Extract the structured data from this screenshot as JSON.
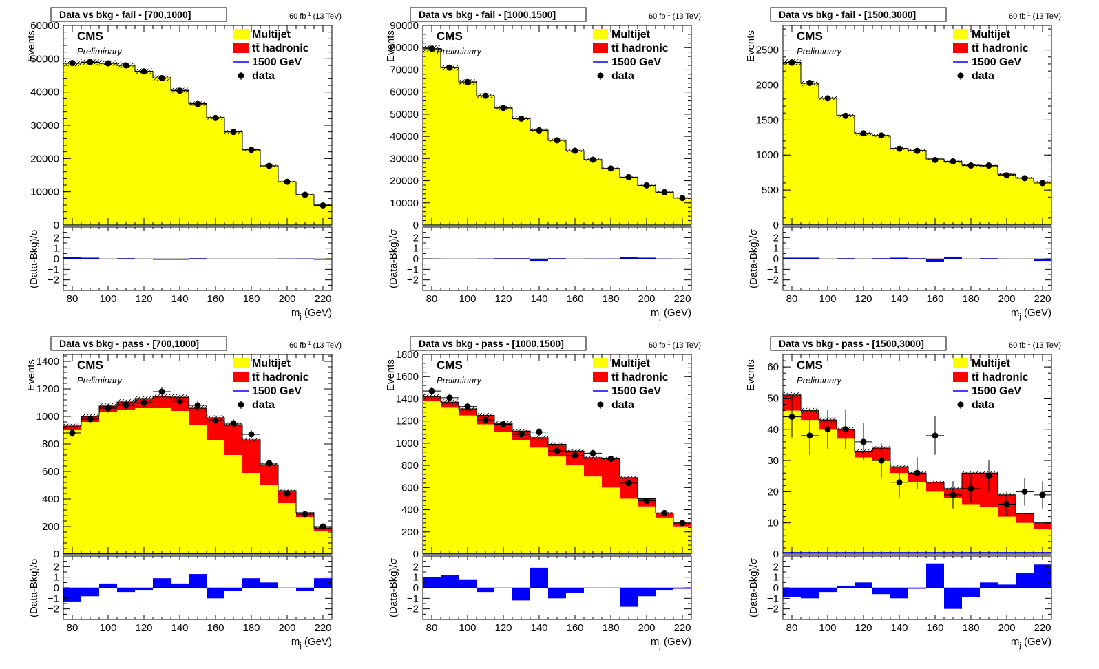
{
  "figure": {
    "lumi_text": "60 fb",
    "lumi_sup": "-1",
    "lumi_energy": " (13 TeV)",
    "cms_label": "CMS",
    "prelim_label": "Preliminary"
  },
  "chart_data": [
    {
      "type": "bar",
      "title": "Data vs bkg - fail - [700,1000]",
      "xlabel": "m",
      "xlabel_sub": "j",
      "xlabel_unit": " (GeV)",
      "ylabel": "Events",
      "ratio_ylabel": "(Data-Bkg)/σ",
      "x_edges": [
        75,
        85,
        95,
        105,
        115,
        125,
        135,
        145,
        155,
        165,
        175,
        185,
        195,
        205,
        215,
        225
      ],
      "xlim": [
        75,
        225
      ],
      "ylim": [
        0,
        60000
      ],
      "yticks": [
        10000,
        20000,
        30000,
        40000,
        50000,
        60000
      ],
      "yticklabels": [
        "10000",
        "20000",
        "30000",
        "40000",
        "50000",
        "60000"
      ],
      "xticks": [
        80,
        100,
        120,
        140,
        160,
        180,
        200,
        220
      ],
      "ratio_ylim": [
        -3,
        3
      ],
      "ratio_yticks": [
        -2,
        -1,
        0,
        1,
        2
      ],
      "legend": [
        {
          "name": "Multijet",
          "color": "#ffff00",
          "kind": "fill"
        },
        {
          "name": "tt̄ hadronic",
          "color": "#ff0000",
          "kind": "fill"
        },
        {
          "name": "1500 GeV",
          "color": "#0000ff",
          "kind": "line"
        },
        {
          "name": "data",
          "color": "#000000",
          "kind": "marker"
        }
      ],
      "series": [
        {
          "name": "Multijet",
          "color": "#ffff00",
          "values": [
            48600,
            48900,
            48700,
            48000,
            46200,
            44200,
            40500,
            36500,
            32300,
            28000,
            22600,
            17800,
            13000,
            9100,
            6000
          ]
        },
        {
          "name": "tt̄ hadronic",
          "color": "#ff0000",
          "values": [
            20,
            20,
            20,
            20,
            20,
            20,
            20,
            20,
            20,
            20,
            20,
            20,
            20,
            20,
            20
          ]
        },
        {
          "name": "1500 GeV",
          "color": "#0000ff",
          "values": [
            5,
            5,
            5,
            5,
            5,
            5,
            5,
            5,
            5,
            5,
            5,
            5,
            5,
            5,
            5
          ]
        },
        {
          "name": "data",
          "color": "#000000",
          "values": [
            48700,
            49000,
            48600,
            48000,
            46200,
            44200,
            40400,
            36400,
            32200,
            28000,
            22600,
            17800,
            13000,
            9100,
            5900
          ]
        }
      ],
      "ratio": [
        0.15,
        0.1,
        -0.05,
        0.05,
        0.0,
        -0.1,
        -0.1,
        0.05,
        0.0,
        -0.05,
        -0.05,
        0.0,
        0.02,
        0.03,
        -0.1
      ]
    },
    {
      "type": "bar",
      "title": "Data vs bkg - fail - [1000,1500]",
      "xlabel": "m",
      "xlabel_sub": "j",
      "xlabel_unit": " (GeV)",
      "ylabel": "Events",
      "ratio_ylabel": "(Data-Bkg)/σ",
      "x_edges": [
        75,
        85,
        95,
        105,
        115,
        125,
        135,
        145,
        155,
        165,
        175,
        185,
        195,
        205,
        215,
        225
      ],
      "xlim": [
        75,
        225
      ],
      "ylim": [
        0,
        90000
      ],
      "yticks": [
        10000,
        20000,
        30000,
        40000,
        50000,
        60000,
        70000,
        80000,
        90000
      ],
      "yticklabels": [
        "10000",
        "20000",
        "30000",
        "40000",
        "50000",
        "60000",
        "70000",
        "80000",
        "90000"
      ],
      "xticks": [
        80,
        100,
        120,
        140,
        160,
        180,
        200,
        220
      ],
      "ratio_ylim": [
        -3,
        3
      ],
      "ratio_yticks": [
        -2,
        -1,
        0,
        1,
        2
      ],
      "legend": [
        {
          "name": "Multijet",
          "color": "#ffff00",
          "kind": "fill"
        },
        {
          "name": "tt̄ hadronic",
          "color": "#ff0000",
          "kind": "fill"
        },
        {
          "name": "1500 GeV",
          "color": "#0000ff",
          "kind": "line"
        },
        {
          "name": "data",
          "color": "#000000",
          "kind": "marker"
        }
      ],
      "series": [
        {
          "name": "Multijet",
          "color": "#ffff00",
          "values": [
            79500,
            71000,
            64500,
            58300,
            52800,
            48000,
            42800,
            38200,
            33500,
            29500,
            25500,
            21500,
            17800,
            14800,
            12200
          ]
        },
        {
          "name": "tt̄ hadronic",
          "color": "#ff0000",
          "values": [
            30,
            30,
            30,
            30,
            30,
            30,
            30,
            30,
            30,
            30,
            30,
            30,
            30,
            30,
            30
          ]
        },
        {
          "name": "1500 GeV",
          "color": "#0000ff",
          "values": [
            5,
            5,
            5,
            5,
            5,
            5,
            5,
            5,
            5,
            5,
            5,
            5,
            5,
            5,
            5
          ]
        },
        {
          "name": "data",
          "color": "#000000",
          "values": [
            79500,
            71000,
            64500,
            58300,
            52800,
            48000,
            42700,
            38200,
            33500,
            29500,
            25500,
            21600,
            17900,
            14800,
            12200
          ]
        }
      ],
      "ratio": [
        0.02,
        -0.05,
        0.0,
        0.02,
        0.05,
        0.05,
        -0.2,
        0.05,
        0.0,
        0.02,
        0.02,
        0.15,
        0.1,
        0.02,
        0.0
      ]
    },
    {
      "type": "bar",
      "title": "Data vs bkg - fail - [1500,3000]",
      "xlabel": "m",
      "xlabel_sub": "j",
      "xlabel_unit": " (GeV)",
      "ylabel": "Events",
      "ratio_ylabel": "(Data-Bkg)/σ",
      "x_edges": [
        75,
        85,
        95,
        105,
        115,
        125,
        135,
        145,
        155,
        165,
        175,
        185,
        195,
        205,
        215,
        225
      ],
      "xlim": [
        75,
        225
      ],
      "ylim": [
        0,
        2850
      ],
      "yticks": [
        500,
        1000,
        1500,
        2000,
        2500
      ],
      "yticklabels": [
        "500",
        "1000",
        "1500",
        "2000",
        "2500"
      ],
      "xticks": [
        80,
        100,
        120,
        140,
        160,
        180,
        200,
        220
      ],
      "ratio_ylim": [
        -3,
        3
      ],
      "ratio_yticks": [
        -2,
        -1,
        0,
        1,
        2
      ],
      "legend": [
        {
          "name": "Multijet",
          "color": "#ffff00",
          "kind": "fill"
        },
        {
          "name": "tt̄ hadronic",
          "color": "#ff0000",
          "kind": "fill"
        },
        {
          "name": "1500 GeV",
          "color": "#0000ff",
          "kind": "line"
        },
        {
          "name": "data",
          "color": "#000000",
          "kind": "marker"
        }
      ],
      "series": [
        {
          "name": "Multijet",
          "color": "#ffff00",
          "values": [
            2320,
            2020,
            1810,
            1560,
            1300,
            1270,
            1090,
            1060,
            940,
            900,
            850,
            840,
            720,
            670,
            610
          ]
        },
        {
          "name": "tt̄ hadronic",
          "color": "#ff0000",
          "values": [
            5,
            5,
            5,
            5,
            5,
            5,
            5,
            5,
            5,
            5,
            5,
            5,
            5,
            5,
            5
          ]
        },
        {
          "name": "1500 GeV",
          "color": "#0000ff",
          "values": [
            2,
            2,
            2,
            2,
            2,
            2,
            2,
            2,
            2,
            2,
            2,
            2,
            2,
            2,
            2
          ]
        },
        {
          "name": "data",
          "color": "#000000",
          "values": [
            2320,
            2030,
            1810,
            1560,
            1310,
            1280,
            1090,
            1060,
            930,
            910,
            850,
            850,
            710,
            670,
            600
          ]
        }
      ],
      "ratio": [
        0.1,
        0.1,
        0.0,
        0.05,
        0.0,
        0.05,
        0.1,
        0.05,
        -0.3,
        0.2,
        0.0,
        0.05,
        -0.05,
        0.0,
        -0.2
      ]
    },
    {
      "type": "bar",
      "title": "Data vs bkg - pass - [700,1000]",
      "xlabel": "m",
      "xlabel_sub": "j",
      "xlabel_unit": " (GeV)",
      "ylabel": "Events",
      "ratio_ylabel": "(Data-Bkg)/σ",
      "x_edges": [
        75,
        85,
        95,
        105,
        115,
        125,
        135,
        145,
        155,
        165,
        175,
        185,
        195,
        205,
        215,
        225
      ],
      "xlim": [
        75,
        225
      ],
      "ylim": [
        0,
        1450
      ],
      "yticks": [
        200,
        400,
        600,
        800,
        1000,
        1200,
        1400
      ],
      "yticklabels": [
        "200",
        "400",
        "600",
        "800",
        "1000",
        "1200",
        "1400"
      ],
      "xticks": [
        80,
        100,
        120,
        140,
        160,
        180,
        200,
        220
      ],
      "ratio_ylim": [
        -3,
        3
      ],
      "ratio_yticks": [
        -2,
        -1,
        0,
        1,
        2
      ],
      "legend": [
        {
          "name": "Multijet",
          "color": "#ffff00",
          "kind": "fill"
        },
        {
          "name": "tt̄ hadronic",
          "color": "#ff0000",
          "kind": "fill"
        },
        {
          "name": "1500 GeV",
          "color": "#0000ff",
          "kind": "line"
        },
        {
          "name": "data",
          "color": "#000000",
          "kind": "marker"
        }
      ],
      "series": [
        {
          "name": "Multijet",
          "color": "#ffff00",
          "values": [
            900,
            960,
            1030,
            1050,
            1060,
            1060,
            1040,
            940,
            830,
            720,
            590,
            500,
            370,
            270,
            170
          ]
        },
        {
          "name": "tt̄ hadronic",
          "color": "#ff0000",
          "values": [
            30,
            40,
            45,
            55,
            70,
            85,
            100,
            120,
            160,
            220,
            240,
            150,
            90,
            30,
            20
          ]
        },
        {
          "name": "1500 GeV",
          "color": "#0000ff",
          "values": [
            2,
            2,
            2,
            2,
            2,
            2,
            2,
            2,
            2,
            2,
            2,
            2,
            2,
            2,
            2
          ]
        },
        {
          "name": "data",
          "color": "#000000",
          "values": [
            880,
            980,
            1060,
            1080,
            1100,
            1180,
            1110,
            1080,
            970,
            950,
            870,
            660,
            440,
            290,
            200
          ]
        }
      ],
      "ratio": [
        -1.3,
        -0.8,
        0.4,
        -0.4,
        -0.2,
        0.9,
        0.4,
        1.3,
        -1.0,
        -0.3,
        0.9,
        0.5,
        0.0,
        -0.3,
        0.9
      ]
    },
    {
      "type": "bar",
      "title": "Data vs bkg - pass - [1000,1500]",
      "xlabel": "m",
      "xlabel_sub": "j",
      "xlabel_unit": " (GeV)",
      "ylabel": "Events",
      "ratio_ylabel": "(Data-Bkg)/σ",
      "x_edges": [
        75,
        85,
        95,
        105,
        115,
        125,
        135,
        145,
        155,
        165,
        175,
        185,
        195,
        205,
        215,
        225
      ],
      "xlim": [
        75,
        225
      ],
      "ylim": [
        0,
        1800
      ],
      "yticks": [
        200,
        400,
        600,
        800,
        1000,
        1200,
        1400,
        1600,
        1800
      ],
      "yticklabels": [
        "200",
        "400",
        "600",
        "800",
        "1000",
        "1200",
        "1400",
        "1600",
        "1800"
      ],
      "xticks": [
        80,
        100,
        120,
        140,
        160,
        180,
        200,
        220
      ],
      "ratio_ylim": [
        -3,
        3
      ],
      "ratio_yticks": [
        -2,
        -1,
        0,
        1,
        2
      ],
      "legend": [
        {
          "name": "Multijet",
          "color": "#ffff00",
          "kind": "fill"
        },
        {
          "name": "tt̄ hadronic",
          "color": "#ff0000",
          "kind": "fill"
        },
        {
          "name": "1500 GeV",
          "color": "#0000ff",
          "kind": "line"
        },
        {
          "name": "data",
          "color": "#000000",
          "kind": "marker"
        }
      ],
      "series": [
        {
          "name": "Multijet",
          "color": "#ffff00",
          "values": [
            1380,
            1320,
            1250,
            1170,
            1100,
            1030,
            960,
            880,
            800,
            700,
            600,
            500,
            430,
            330,
            250
          ]
        },
        {
          "name": "tt̄ hadronic",
          "color": "#ff0000",
          "values": [
            40,
            50,
            60,
            80,
            80,
            80,
            90,
            110,
            130,
            170,
            260,
            190,
            70,
            40,
            30
          ]
        },
        {
          "name": "1500 GeV",
          "color": "#0000ff",
          "values": [
            2,
            2,
            2,
            2,
            2,
            2,
            2,
            2,
            2,
            2,
            2,
            2,
            2,
            2,
            2
          ]
        },
        {
          "name": "data",
          "color": "#000000",
          "values": [
            1470,
            1410,
            1330,
            1210,
            1170,
            1080,
            1100,
            930,
            890,
            910,
            860,
            640,
            480,
            370,
            280
          ]
        }
      ],
      "ratio": [
        1.0,
        1.2,
        0.8,
        -0.4,
        0.0,
        -1.2,
        1.9,
        -1.0,
        -0.5,
        0.0,
        0.0,
        -1.8,
        -0.8,
        -0.2,
        -0.1
      ]
    },
    {
      "type": "bar",
      "title": "Data vs bkg - pass - [1500,3000]",
      "xlabel": "m",
      "xlabel_sub": "j",
      "xlabel_unit": " (GeV)",
      "ylabel": "Events",
      "ratio_ylabel": "(Data-Bkg)/σ",
      "x_edges": [
        75,
        85,
        95,
        105,
        115,
        125,
        135,
        145,
        155,
        165,
        175,
        185,
        195,
        205,
        215,
        225
      ],
      "xlim": [
        75,
        225
      ],
      "ylim": [
        0,
        64
      ],
      "yticks": [
        10,
        20,
        30,
        40,
        50,
        60
      ],
      "yticklabels": [
        "10",
        "20",
        "30",
        "40",
        "50",
        "60"
      ],
      "xticks": [
        80,
        100,
        120,
        140,
        160,
        180,
        200,
        220
      ],
      "ratio_ylim": [
        -3,
        3
      ],
      "ratio_yticks": [
        -2,
        -1,
        0,
        1,
        2
      ],
      "legend": [
        {
          "name": "Multijet",
          "color": "#ffff00",
          "kind": "fill"
        },
        {
          "name": "tt̄ hadronic",
          "color": "#ff0000",
          "kind": "fill"
        },
        {
          "name": "1500 GeV",
          "color": "#0000ff",
          "kind": "line"
        },
        {
          "name": "data",
          "color": "#000000",
          "kind": "marker"
        }
      ],
      "series": [
        {
          "name": "Multijet",
          "color": "#ffff00",
          "values": [
            46,
            43,
            40,
            37,
            31,
            30,
            26,
            23,
            20,
            18,
            16,
            15,
            12,
            10,
            8
          ]
        },
        {
          "name": "tt̄ hadronic",
          "color": "#ff0000",
          "values": [
            5,
            3,
            3,
            3,
            2,
            4,
            2,
            3,
            3,
            3,
            10,
            11,
            7,
            3,
            2
          ]
        },
        {
          "name": "1500 GeV",
          "color": "#0000ff",
          "values": [
            0.5,
            0.5,
            0.5,
            0.5,
            0.5,
            0.5,
            0.5,
            0.5,
            0.5,
            0.5,
            0.5,
            0.5,
            0.5,
            0.5,
            0.5
          ]
        },
        {
          "name": "data",
          "color": "#000000",
          "values": [
            44,
            38,
            40,
            40,
            36,
            30,
            23,
            26,
            38,
            19,
            21,
            25,
            16,
            20,
            19
          ]
        }
      ],
      "ratio": [
        -0.9,
        -1.0,
        -0.4,
        0.2,
        0.5,
        -0.6,
        -1.0,
        -0.1,
        2.3,
        -2.0,
        -0.9,
        0.5,
        0.3,
        1.4,
        2.2
      ]
    }
  ]
}
